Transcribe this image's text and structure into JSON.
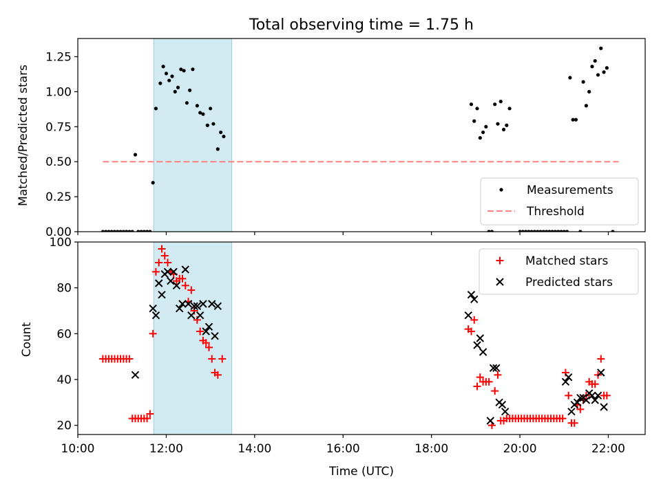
{
  "chart_data": [
    {
      "type": "scatter",
      "title": "Total observing time = 1.75 h",
      "xlabel": "",
      "ylabel": "Matched/Predicted stars",
      "xlim": [
        "10:00",
        "22:50"
      ],
      "ylim": [
        0,
        1.38
      ],
      "yticks": [
        "0.00",
        "0.25",
        "0.50",
        "0.75",
        "1.00",
        "1.25"
      ],
      "xticks_labeled": false,
      "shaded_interval": {
        "x0": "11:43",
        "x1": "13:29",
        "color": "#add8e6"
      },
      "legend_position": "lower right",
      "series": [
        {
          "name": "Measurements",
          "marker": "dot",
          "color": "#000000",
          "points": [
            [
              "10:34",
              0
            ],
            [
              "10:38",
              0
            ],
            [
              "10:42",
              0
            ],
            [
              "10:46",
              0
            ],
            [
              "10:50",
              0
            ],
            [
              "10:54",
              0
            ],
            [
              "10:58",
              0
            ],
            [
              "11:02",
              0
            ],
            [
              "11:06",
              0
            ],
            [
              "11:10",
              0
            ],
            [
              "11:14",
              0
            ],
            [
              "11:18",
              0.55
            ],
            [
              "11:22",
              0
            ],
            [
              "11:26",
              0
            ],
            [
              "11:30",
              0
            ],
            [
              "11:34",
              0
            ],
            [
              "11:38",
              0
            ],
            [
              "11:42",
              0.35
            ],
            [
              "11:46",
              0.88
            ],
            [
              "11:52",
              1.06
            ],
            [
              "11:56",
              1.18
            ],
            [
              "12:00",
              1.13
            ],
            [
              "12:04",
              1.08
            ],
            [
              "12:08",
              1.11
            ],
            [
              "12:12",
              1.0
            ],
            [
              "12:16",
              1.03
            ],
            [
              "12:20",
              1.16
            ],
            [
              "12:24",
              1.15
            ],
            [
              "12:28",
              0.92
            ],
            [
              "12:32",
              1.01
            ],
            [
              "12:36",
              1.16
            ],
            [
              "12:42",
              0.9
            ],
            [
              "12:46",
              0.85
            ],
            [
              "12:50",
              0.84
            ],
            [
              "12:56",
              0.76
            ],
            [
              "13:00",
              0.88
            ],
            [
              "13:04",
              0.77
            ],
            [
              "13:10",
              0.59
            ],
            [
              "13:14",
              0.71
            ],
            [
              "13:18",
              0.68
            ],
            [
              "18:54",
              0.91
            ],
            [
              "18:58",
              0.79
            ],
            [
              "19:02",
              0.88
            ],
            [
              "19:06",
              0.67
            ],
            [
              "19:10",
              0.71
            ],
            [
              "19:14",
              0.75
            ],
            [
              "19:18",
              0
            ],
            [
              "19:22",
              0
            ],
            [
              "19:26",
              0.91
            ],
            [
              "19:30",
              0.77
            ],
            [
              "19:34",
              0.93
            ],
            [
              "19:38",
              0.73
            ],
            [
              "19:42",
              0.76
            ],
            [
              "19:46",
              0.88
            ],
            [
              "20:00",
              0
            ],
            [
              "20:04",
              0
            ],
            [
              "20:08",
              0
            ],
            [
              "20:12",
              0
            ],
            [
              "20:16",
              0
            ],
            [
              "20:20",
              0
            ],
            [
              "20:24",
              0
            ],
            [
              "20:28",
              0
            ],
            [
              "20:32",
              0
            ],
            [
              "20:36",
              0
            ],
            [
              "20:40",
              0
            ],
            [
              "20:44",
              0
            ],
            [
              "20:48",
              0
            ],
            [
              "20:52",
              0
            ],
            [
              "20:56",
              0
            ],
            [
              "21:00",
              0
            ],
            [
              "21:04",
              0
            ],
            [
              "21:08",
              1.1
            ],
            [
              "21:12",
              0.8
            ],
            [
              "21:16",
              0.8
            ],
            [
              "21:22",
              0
            ],
            [
              "21:26",
              1.07
            ],
            [
              "21:30",
              0.9
            ],
            [
              "21:34",
              1.0
            ],
            [
              "21:38",
              1.18
            ],
            [
              "21:42",
              1.22
            ],
            [
              "21:46",
              1.12
            ],
            [
              "21:50",
              1.31
            ],
            [
              "21:54",
              1.14
            ],
            [
              "21:58",
              1.17
            ],
            [
              "22:06",
              0
            ]
          ]
        },
        {
          "name": "Threshold",
          "marker": "dashed-line",
          "color": "#ff8080",
          "points": [
            [
              "10:34",
              0.5
            ],
            [
              "22:14",
              0.5
            ]
          ]
        }
      ]
    },
    {
      "type": "scatter",
      "title": "",
      "xlabel": "Time (UTC)",
      "ylabel": "Count",
      "xlim": [
        "10:00",
        "22:50"
      ],
      "ylim": [
        16,
        100
      ],
      "yticks": [
        "20",
        "40",
        "60",
        "80",
        "100"
      ],
      "xticks": [
        "10:00",
        "12:00",
        "14:00",
        "16:00",
        "18:00",
        "20:00",
        "22:00"
      ],
      "shaded_interval": {
        "x0": "11:43",
        "x1": "13:29",
        "color": "#add8e6"
      },
      "legend_position": "upper right",
      "series": [
        {
          "name": "Matched stars",
          "marker": "plus",
          "color": "#ff0000",
          "points": [
            [
              "10:34",
              49
            ],
            [
              "10:38",
              49
            ],
            [
              "10:42",
              49
            ],
            [
              "10:46",
              49
            ],
            [
              "10:50",
              49
            ],
            [
              "10:54",
              49
            ],
            [
              "10:58",
              49
            ],
            [
              "11:02",
              49
            ],
            [
              "11:06",
              49
            ],
            [
              "11:10",
              49
            ],
            [
              "11:14",
              23
            ],
            [
              "11:18",
              23
            ],
            [
              "11:22",
              23
            ],
            [
              "11:26",
              23
            ],
            [
              "11:30",
              23
            ],
            [
              "11:34",
              23
            ],
            [
              "11:38",
              25
            ],
            [
              "11:42",
              60
            ],
            [
              "11:46",
              87
            ],
            [
              "11:50",
              91
            ],
            [
              "11:54",
              97
            ],
            [
              "11:58",
              94
            ],
            [
              "12:02",
              91
            ],
            [
              "12:06",
              87
            ],
            [
              "12:10",
              86
            ],
            [
              "12:14",
              83
            ],
            [
              "12:18",
              84
            ],
            [
              "12:22",
              84
            ],
            [
              "12:26",
              81
            ],
            [
              "12:30",
              74
            ],
            [
              "12:34",
              79
            ],
            [
              "12:38",
              70
            ],
            [
              "12:42",
              66
            ],
            [
              "12:46",
              61
            ],
            [
              "12:50",
              57
            ],
            [
              "12:54",
              56
            ],
            [
              "12:58",
              54
            ],
            [
              "13:02",
              49
            ],
            [
              "13:06",
              43
            ],
            [
              "13:10",
              42
            ],
            [
              "13:16",
              49
            ],
            [
              "18:50",
              62
            ],
            [
              "18:54",
              61
            ],
            [
              "18:58",
              66
            ],
            [
              "19:02",
              37
            ],
            [
              "19:06",
              41
            ],
            [
              "19:10",
              39
            ],
            [
              "19:14",
              39
            ],
            [
              "19:18",
              39
            ],
            [
              "19:22",
              20
            ],
            [
              "19:26",
              35
            ],
            [
              "19:30",
              42
            ],
            [
              "19:34",
              22
            ],
            [
              "19:38",
              22
            ],
            [
              "19:42",
              23
            ],
            [
              "19:46",
              23
            ],
            [
              "19:50",
              23
            ],
            [
              "19:54",
              23
            ],
            [
              "19:58",
              23
            ],
            [
              "20:02",
              23
            ],
            [
              "20:06",
              23
            ],
            [
              "20:10",
              23
            ],
            [
              "20:14",
              23
            ],
            [
              "20:18",
              23
            ],
            [
              "20:22",
              23
            ],
            [
              "20:26",
              23
            ],
            [
              "20:30",
              23
            ],
            [
              "20:34",
              23
            ],
            [
              "20:38",
              23
            ],
            [
              "20:42",
              23
            ],
            [
              "20:46",
              23
            ],
            [
              "20:50",
              23
            ],
            [
              "20:54",
              23
            ],
            [
              "20:58",
              23
            ],
            [
              "21:02",
              43
            ],
            [
              "21:06",
              33
            ],
            [
              "21:10",
              21
            ],
            [
              "21:14",
              21
            ],
            [
              "21:18",
              29
            ],
            [
              "21:22",
              27
            ],
            [
              "21:26",
              31
            ],
            [
              "21:30",
              33
            ],
            [
              "21:34",
              39
            ],
            [
              "21:38",
              38
            ],
            [
              "21:42",
              38
            ],
            [
              "21:46",
              42
            ],
            [
              "21:50",
              49
            ],
            [
              "21:54",
              33
            ],
            [
              "21:58",
              33
            ]
          ]
        },
        {
          "name": "Predicted stars",
          "marker": "x",
          "color": "#000000",
          "points": [
            [
              "11:18",
              42
            ],
            [
              "11:42",
              71
            ],
            [
              "11:46",
              68
            ],
            [
              "11:50",
              82
            ],
            [
              "11:54",
              77
            ],
            [
              "11:58",
              86
            ],
            [
              "12:02",
              87
            ],
            [
              "12:06",
              83
            ],
            [
              "12:10",
              87
            ],
            [
              "12:14",
              81
            ],
            [
              "12:18",
              71
            ],
            [
              "12:22",
              73
            ],
            [
              "12:26",
              88
            ],
            [
              "12:30",
              73
            ],
            [
              "12:34",
              68
            ],
            [
              "12:38",
              72
            ],
            [
              "12:42",
              72
            ],
            [
              "12:46",
              68
            ],
            [
              "12:50",
              73
            ],
            [
              "12:54",
              61
            ],
            [
              "12:58",
              63
            ],
            [
              "13:02",
              73
            ],
            [
              "13:06",
              59
            ],
            [
              "13:10",
              72
            ],
            [
              "18:50",
              68
            ],
            [
              "18:54",
              77
            ],
            [
              "18:58",
              75
            ],
            [
              "19:02",
              55
            ],
            [
              "19:06",
              58
            ],
            [
              "19:10",
              52
            ],
            [
              "19:20",
              22
            ],
            [
              "19:24",
              45
            ],
            [
              "19:28",
              45
            ],
            [
              "19:32",
              30
            ],
            [
              "19:36",
              29
            ],
            [
              "19:40",
              26
            ],
            [
              "21:02",
              39
            ],
            [
              "21:06",
              41
            ],
            [
              "21:10",
              26
            ],
            [
              "21:14",
              29
            ],
            [
              "21:18",
              30
            ],
            [
              "21:22",
              32
            ],
            [
              "21:26",
              32
            ],
            [
              "21:30",
              31
            ],
            [
              "21:34",
              34
            ],
            [
              "21:38",
              33
            ],
            [
              "21:42",
              31
            ],
            [
              "21:46",
              33
            ],
            [
              "21:50",
              43
            ],
            [
              "21:54",
              28
            ]
          ]
        }
      ]
    }
  ]
}
